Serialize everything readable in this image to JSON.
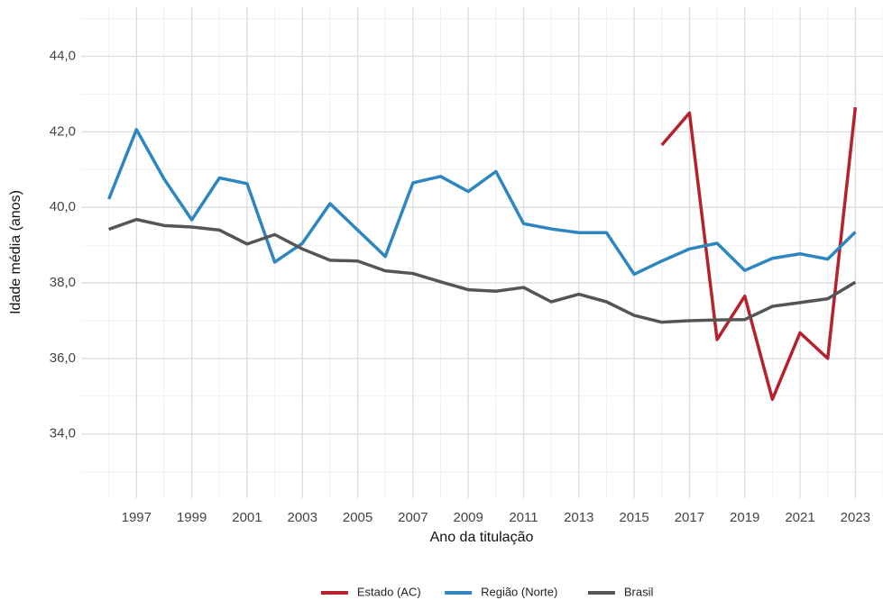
{
  "chart_data": {
    "type": "line",
    "x_label": "Ano da titulação",
    "y_label": "Idade média (anos)",
    "x": [
      1996,
      1997,
      1998,
      1999,
      2000,
      2001,
      2002,
      2003,
      2004,
      2005,
      2006,
      2007,
      2008,
      2009,
      2010,
      2011,
      2012,
      2013,
      2014,
      2015,
      2016,
      2017,
      2018,
      2019,
      2020,
      2021,
      2022,
      2023
    ],
    "series": [
      {
        "name": "Estado (AC)",
        "color": "#b5222e",
        "values": [
          null,
          null,
          null,
          null,
          null,
          null,
          null,
          null,
          null,
          null,
          null,
          null,
          null,
          null,
          null,
          null,
          null,
          null,
          null,
          null,
          41.65,
          42.5,
          36.5,
          37.65,
          34.92,
          36.68,
          36.0,
          42.65
        ]
      },
      {
        "name": "Região (Norte)",
        "color": "#2e86c1",
        "values": [
          40.22,
          42.06,
          40.75,
          39.67,
          40.78,
          40.63,
          38.55,
          39.05,
          40.1,
          39.4,
          38.7,
          40.65,
          40.82,
          40.42,
          40.95,
          39.57,
          39.43,
          39.33,
          39.33,
          38.23,
          38.58,
          38.9,
          39.05,
          38.33,
          38.65,
          38.77,
          38.63,
          39.35
        ]
      },
      {
        "name": "Brasil",
        "color": "#555555",
        "values": [
          39.42,
          39.68,
          39.52,
          39.48,
          39.4,
          39.03,
          39.28,
          38.9,
          38.6,
          38.58,
          38.32,
          38.25,
          38.03,
          37.82,
          37.78,
          37.88,
          37.5,
          37.7,
          37.5,
          37.14,
          36.96,
          37.0,
          37.02,
          37.03,
          37.38,
          37.48,
          37.58,
          38.02
        ]
      }
    ],
    "xlim": [
      1995,
      2024
    ],
    "xticks": [
      1997,
      1999,
      2001,
      2003,
      2005,
      2007,
      2009,
      2011,
      2013,
      2015,
      2017,
      2019,
      2021,
      2023
    ],
    "ylim": [
      32.3,
      45.3
    ],
    "yticks": [
      {
        "value": 34,
        "label": "34,0"
      },
      {
        "value": 36,
        "label": "36,0"
      },
      {
        "value": 38,
        "label": "38,0"
      },
      {
        "value": 40,
        "label": "40,0"
      },
      {
        "value": 42,
        "label": "42,0"
      },
      {
        "value": 44,
        "label": "44,0"
      }
    ],
    "grid": true,
    "legend": "bottom"
  }
}
